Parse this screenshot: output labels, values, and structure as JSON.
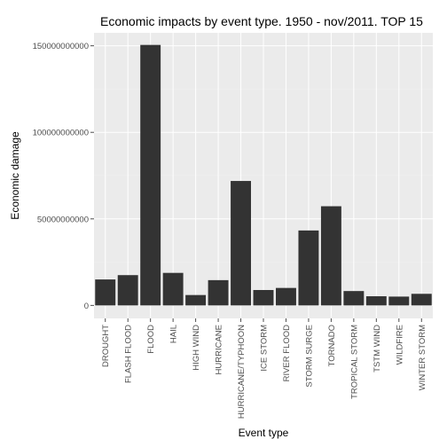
{
  "chart_data": {
    "type": "bar",
    "title": "Economic impacts by event type. 1950 - nov/2011. TOP 15",
    "xlabel": "Event type",
    "ylabel": "Economic damage",
    "categories": [
      "DROUGHT",
      "FLASH FLOOD",
      "FLOOD",
      "HAIL",
      "HIGH WIND",
      "HURRICANE",
      "HURRICANE/TYPHOON",
      "ICE STORM",
      "RIVER FLOOD",
      "STORM SURGE",
      "TORNADO",
      "TROPICAL STORM",
      "TSTM WIND",
      "WILDFIRE",
      "WINTER STORM"
    ],
    "values": [
      15000000000,
      17500000000,
      150500000000,
      18800000000,
      6000000000,
      14600000000,
      71900000000,
      8900000000,
      10100000000,
      43300000000,
      57300000000,
      8300000000,
      5300000000,
      5100000000,
      6700000000
    ],
    "yticks": [
      0,
      50000000000,
      100000000000,
      150000000000
    ],
    "ytick_labels": [
      "0",
      "50000000000",
      "100000000000",
      "150000000000"
    ],
    "ylim": [
      -7500000000,
      157500000000
    ],
    "grid": true,
    "colors": {
      "bar": "#333333",
      "panel": "#ebebeb",
      "grid_major": "#ffffff",
      "grid_minor": "#f2f2f2"
    }
  }
}
